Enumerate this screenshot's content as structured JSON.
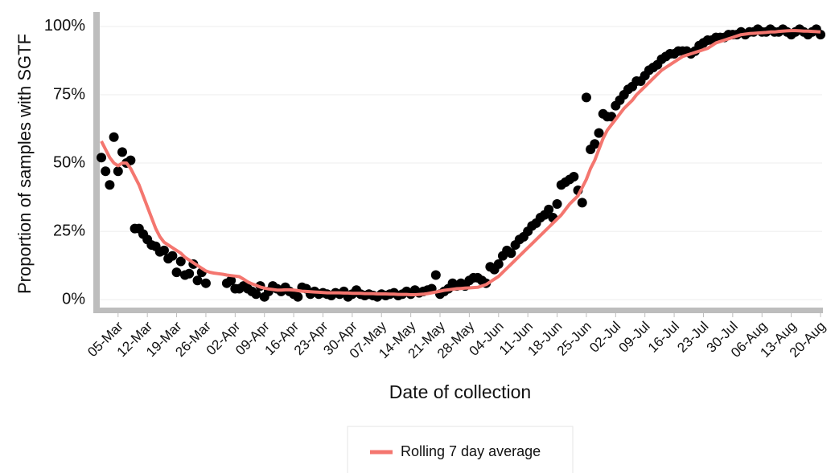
{
  "chart_data": {
    "type": "scatter",
    "ylabel": "Proportion of samples with SGTF",
    "xlabel": "Date of collection",
    "x": [
      "01-Mar",
      "02-Mar",
      "03-Mar",
      "04-Mar",
      "05-Mar",
      "06-Mar",
      "07-Mar",
      "08-Mar",
      "09-Mar",
      "10-Mar",
      "11-Mar",
      "12-Mar",
      "13-Mar",
      "14-Mar",
      "15-Mar",
      "16-Mar",
      "17-Mar",
      "18-Mar",
      "19-Mar",
      "20-Mar",
      "21-Mar",
      "22-Mar",
      "23-Mar",
      "24-Mar",
      "25-Mar",
      "26-Mar",
      "27-Mar",
      "28-Mar",
      "29-Mar",
      "30-Mar",
      "31-Mar",
      "01-Apr",
      "02-Apr",
      "03-Apr",
      "04-Apr",
      "05-Apr",
      "06-Apr",
      "07-Apr",
      "08-Apr",
      "09-Apr",
      "10-Apr",
      "11-Apr",
      "12-Apr",
      "13-Apr",
      "14-Apr",
      "15-Apr",
      "16-Apr",
      "17-Apr",
      "18-Apr",
      "19-Apr",
      "20-Apr",
      "21-Apr",
      "22-Apr",
      "23-Apr",
      "24-Apr",
      "25-Apr",
      "26-Apr",
      "27-Apr",
      "28-Apr",
      "29-Apr",
      "30-Apr",
      "01-May",
      "02-May",
      "03-May",
      "04-May",
      "05-May",
      "06-May",
      "07-May",
      "08-May",
      "09-May",
      "10-May",
      "11-May",
      "12-May",
      "13-May",
      "14-May",
      "15-May",
      "16-May",
      "17-May",
      "18-May",
      "19-May",
      "20-May",
      "21-May",
      "22-May",
      "23-May",
      "24-May",
      "25-May",
      "26-May",
      "27-May",
      "28-May",
      "29-May",
      "30-May",
      "31-May",
      "01-Jun",
      "02-Jun",
      "03-Jun",
      "04-Jun",
      "05-Jun",
      "06-Jun",
      "07-Jun",
      "08-Jun",
      "09-Jun",
      "10-Jun",
      "11-Jun",
      "12-Jun",
      "13-Jun",
      "14-Jun",
      "15-Jun",
      "16-Jun",
      "17-Jun",
      "18-Jun",
      "19-Jun",
      "20-Jun",
      "21-Jun",
      "22-Jun",
      "23-Jun",
      "24-Jun",
      "25-Jun",
      "26-Jun",
      "27-Jun",
      "28-Jun",
      "29-Jun",
      "30-Jun",
      "01-Jul",
      "02-Jul",
      "03-Jul",
      "04-Jul",
      "05-Jul",
      "06-Jul",
      "07-Jul",
      "08-Jul",
      "09-Jul",
      "10-Jul",
      "11-Jul",
      "12-Jul",
      "13-Jul",
      "14-Jul",
      "15-Jul",
      "16-Jul",
      "17-Jul",
      "18-Jul",
      "19-Jul",
      "20-Jul",
      "21-Jul",
      "22-Jul",
      "23-Jul",
      "24-Jul",
      "25-Jul",
      "26-Jul",
      "27-Jul",
      "28-Jul",
      "29-Jul",
      "30-Jul",
      "31-Jul",
      "01-Aug",
      "02-Aug",
      "03-Aug",
      "04-Aug",
      "05-Aug",
      "06-Aug",
      "07-Aug",
      "08-Aug",
      "09-Aug",
      "10-Aug",
      "11-Aug",
      "12-Aug",
      "13-Aug",
      "14-Aug",
      "15-Aug",
      "16-Aug",
      "17-Aug",
      "18-Aug",
      "19-Aug",
      "20-Aug"
    ],
    "series": [
      {
        "type": "scatter",
        "color": "#000000",
        "values": [
          52,
          47,
          42,
          59.5,
          47,
          54,
          50,
          51,
          26,
          26,
          24,
          22,
          20,
          19.5,
          17.5,
          18,
          15,
          16,
          10,
          14,
          9,
          9.5,
          13,
          7,
          10,
          6,
          null,
          null,
          null,
          null,
          6,
          7,
          4,
          4,
          5,
          4,
          3,
          2,
          5,
          1,
          3,
          5,
          4,
          3,
          4.5,
          3,
          2,
          1,
          4.5,
          4,
          2,
          3,
          2,
          2.5,
          2,
          1.5,
          2.5,
          2,
          3,
          1,
          2,
          3.5,
          2,
          1.5,
          2,
          1.5,
          1,
          2,
          1.5,
          2,
          2.5,
          1.5,
          2,
          3,
          2,
          3.5,
          2.5,
          3,
          3.5,
          4,
          9,
          2,
          3,
          4,
          6,
          5,
          6,
          5,
          7,
          8,
          8,
          7,
          6,
          12,
          11,
          13,
          16,
          18,
          17,
          20,
          22,
          23,
          25,
          27,
          28,
          30,
          31,
          33,
          30,
          35,
          42,
          43,
          44,
          45,
          40,
          35.5,
          74,
          55,
          57,
          61,
          68,
          67,
          67,
          71,
          73,
          75,
          77,
          78,
          80,
          80,
          82,
          84,
          85,
          86,
          88,
          89,
          90,
          90,
          91,
          91,
          91,
          90,
          91,
          93,
          94,
          95,
          95,
          96,
          96,
          96,
          97,
          97,
          97,
          98,
          97,
          98,
          98,
          99,
          98,
          98,
          99,
          98,
          98,
          99,
          98,
          97,
          98,
          99,
          98,
          97,
          98,
          99,
          97
        ]
      },
      {
        "type": "line",
        "name": "Rolling 7 day average",
        "color": "#f4766f",
        "values": [
          58,
          55,
          52,
          50,
          49,
          50,
          50,
          48,
          45,
          42,
          38,
          34,
          30,
          26,
          23,
          21,
          20,
          19,
          18,
          17,
          15.5,
          14.5,
          13.5,
          12.5,
          11.5,
          10.5,
          10,
          9.7,
          9.5,
          9.3,
          9,
          8.8,
          8.6,
          8.4,
          7.5,
          6.5,
          5.8,
          5.2,
          4.6,
          4.2,
          3.9,
          3.7,
          3.5,
          3.5,
          3.6,
          3.6,
          3.5,
          3.3,
          3.1,
          3,
          2.9,
          2.8,
          2.7,
          2.6,
          2.5,
          2.5,
          2.5,
          2.5,
          2.4,
          2.4,
          2.3,
          2.3,
          2.3,
          2.2,
          2.2,
          2.2,
          2.1,
          2.1,
          2.1,
          2,
          2,
          1.9,
          1.9,
          1.9,
          1.8,
          1.8,
          1.9,
          2,
          2.2,
          2.5,
          2.8,
          3.1,
          3.4,
          3.6,
          3.8,
          4,
          4.1,
          4.2,
          4.3,
          4.4,
          4.5,
          5,
          5.5,
          6.5,
          7.5,
          8.5,
          10,
          11.5,
          13,
          14.5,
          16,
          17.5,
          19,
          20.5,
          22,
          23.5,
          25,
          26.5,
          28,
          29.5,
          31,
          33,
          35,
          36.5,
          38,
          41,
          44,
          48,
          51,
          55,
          59,
          62,
          64,
          66,
          68,
          70,
          71.5,
          73,
          75,
          76.5,
          78,
          79.5,
          81,
          82.5,
          84,
          85,
          86,
          87,
          88,
          89,
          89.5,
          90,
          90.5,
          91,
          91.5,
          92,
          93,
          94,
          94.5,
          95,
          95.5,
          96,
          96.5,
          97,
          97.2,
          97.4,
          97.5,
          97.6,
          97.7,
          97.8,
          98,
          98,
          98.2,
          98.3,
          98.4,
          98.5,
          98.5,
          98.4,
          98.3,
          98.3,
          98.2,
          98.1,
          98
        ]
      }
    ],
    "xlim": [
      "01-Mar",
      "20-Aug"
    ],
    "xticks": [
      "05-Mar",
      "12-Mar",
      "19-Mar",
      "26-Mar",
      "02-Apr",
      "09-Apr",
      "16-Apr",
      "23-Apr",
      "30-Apr",
      "07-May",
      "14-May",
      "21-May",
      "28-May",
      "04-Jun",
      "11-Jun",
      "18-Jun",
      "25-Jun",
      "02-Jul",
      "09-Jul",
      "16-Jul",
      "23-Jul",
      "30-Jul",
      "06-Aug",
      "13-Aug",
      "20-Aug"
    ],
    "ylim": [
      -3.5,
      104.4
    ],
    "yticks": [
      {
        "value": 0,
        "label": "0%"
      },
      {
        "value": 25,
        "label": "25%"
      },
      {
        "value": 50,
        "label": "50%"
      },
      {
        "value": 75,
        "label": "75%"
      },
      {
        "value": 100,
        "label": "100%"
      }
    ],
    "grid": true,
    "legend": "bottom"
  }
}
